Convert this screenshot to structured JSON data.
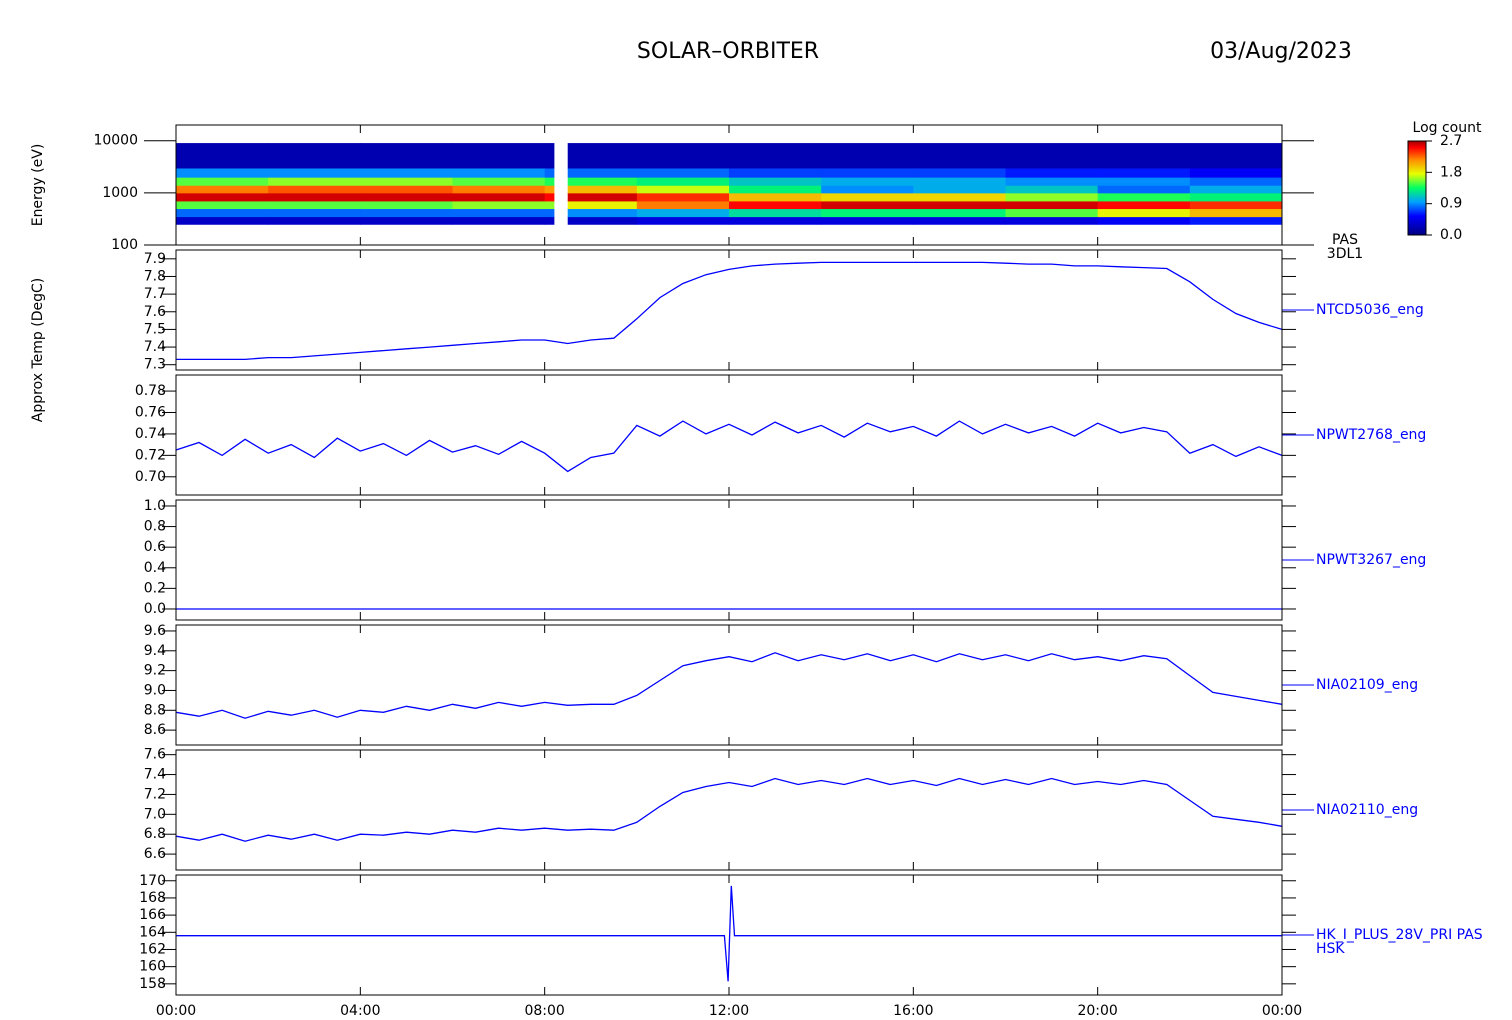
{
  "header": {
    "title": "SOLAR–ORBITER",
    "date": "03/Aug/2023"
  },
  "chart_data": [
    {
      "type": "heatmap",
      "ylabel": "Energy (eV)",
      "instrument": [
        "PAS",
        "3DL1"
      ],
      "log": true,
      "xlim": [
        0,
        24
      ],
      "ylim": [
        100,
        20000
      ],
      "yticks": [
        100,
        1000,
        10000
      ],
      "x_bins": [
        0,
        2,
        4,
        6,
        8,
        8.2,
        8.5,
        10,
        12,
        14,
        16,
        18,
        20,
        22,
        24
      ],
      "y_bins": [
        250,
        350,
        500,
        700,
        1000,
        1400,
        2000,
        3000,
        9000
      ],
      "z": [
        [
          0.3,
          0.8,
          1.5,
          2.6,
          2.2,
          1.5,
          0.9,
          0.2
        ],
        [
          0.3,
          0.8,
          1.5,
          2.6,
          2.3,
          1.6,
          0.9,
          0.2
        ],
        [
          0.3,
          0.8,
          1.5,
          2.6,
          2.3,
          1.6,
          0.9,
          0.2
        ],
        [
          0.3,
          0.8,
          1.6,
          2.6,
          2.2,
          1.5,
          0.9,
          0.2
        ],
        [
          0.3,
          0.8,
          1.6,
          2.5,
          2.1,
          1.4,
          0.8,
          0.2
        ],
        [
          null,
          null,
          null,
          null,
          null,
          null,
          null,
          null
        ],
        [
          0.3,
          0.9,
          1.8,
          2.6,
          2.0,
          1.4,
          0.8,
          0.2
        ],
        [
          0.4,
          1.0,
          2.2,
          2.4,
          1.7,
          1.3,
          0.8,
          0.2
        ],
        [
          0.4,
          1.2,
          2.5,
          2.0,
          1.3,
          1.1,
          0.7,
          0.2
        ],
        [
          0.4,
          1.3,
          2.6,
          1.9,
          0.9,
          1.0,
          0.7,
          0.2
        ],
        [
          0.4,
          1.3,
          2.6,
          1.9,
          1.0,
          1.0,
          0.7,
          0.2
        ],
        [
          0.4,
          1.5,
          2.6,
          1.6,
          1.1,
          0.9,
          0.6,
          0.2
        ],
        [
          0.5,
          1.8,
          2.5,
          1.4,
          0.8,
          0.9,
          0.6,
          0.2
        ],
        [
          0.6,
          2.0,
          2.4,
          1.3,
          1.0,
          0.8,
          0.5,
          0.2
        ]
      ],
      "colorbar_label": "Log count",
      "zlim": [
        0,
        2.7
      ],
      "zticks": [
        {
          "value": 0,
          "label": "0.0"
        },
        0.9,
        1.8,
        2.7
      ]
    },
    {
      "type": "line",
      "ylabel": "Approx Temp (DegC)",
      "xlim": [
        0,
        24
      ],
      "ylim": [
        7.27,
        7.95
      ],
      "yticks": [
        7.3,
        7.4,
        7.5,
        7.6,
        7.7,
        7.8,
        7.9
      ],
      "x": [
        0,
        0.5,
        1,
        1.5,
        2,
        2.5,
        3,
        3.5,
        4,
        4.5,
        5,
        5.5,
        6,
        6.5,
        7,
        7.5,
        8,
        8.5,
        9,
        9.5,
        10,
        10.5,
        11,
        11.5,
        12,
        12.5,
        13,
        13.5,
        14,
        14.5,
        15,
        15.5,
        16,
        16.5,
        17,
        17.5,
        18,
        18.5,
        19,
        19.5,
        20,
        20.5,
        21,
        21.5,
        22,
        22.5,
        23,
        23.5,
        24
      ],
      "series": [
        {
          "name": "NTCD5036_eng",
          "color": "#0000ff",
          "values": [
            7.33,
            7.33,
            7.33,
            7.33,
            7.34,
            7.34,
            7.35,
            7.36,
            7.37,
            7.38,
            7.39,
            7.4,
            7.41,
            7.42,
            7.43,
            7.44,
            7.44,
            7.42,
            7.44,
            7.45,
            7.56,
            7.68,
            7.76,
            7.81,
            7.84,
            7.86,
            7.87,
            7.875,
            7.88,
            7.88,
            7.88,
            7.88,
            7.88,
            7.88,
            7.88,
            7.88,
            7.875,
            7.87,
            7.87,
            7.86,
            7.86,
            7.855,
            7.85,
            7.845,
            7.77,
            7.67,
            7.59,
            7.54,
            7.5
          ]
        }
      ]
    },
    {
      "type": "line",
      "xlim": [
        0,
        24
      ],
      "ylim": [
        0.683,
        0.795
      ],
      "yticks": [
        {
          "value": 0.7,
          "label": "0.70"
        },
        0.72,
        0.74,
        0.76,
        0.78
      ],
      "x": [
        0,
        0.5,
        1,
        1.5,
        2,
        2.5,
        3,
        3.5,
        4,
        4.5,
        5,
        5.5,
        6,
        6.5,
        7,
        7.5,
        8,
        8.5,
        9,
        9.5,
        10,
        10.5,
        11,
        11.5,
        12,
        12.5,
        13,
        13.5,
        14,
        14.5,
        15,
        15.5,
        16,
        16.5,
        17,
        17.5,
        18,
        18.5,
        19,
        19.5,
        20,
        20.5,
        21,
        21.5,
        22,
        22.5,
        23,
        23.5,
        24
      ],
      "series": [
        {
          "name": "NPWT2768_eng",
          "color": "#0000ff",
          "values": [
            0.725,
            0.732,
            0.72,
            0.735,
            0.722,
            0.73,
            0.718,
            0.736,
            0.724,
            0.731,
            0.72,
            0.734,
            0.723,
            0.729,
            0.721,
            0.733,
            0.722,
            0.705,
            0.718,
            0.722,
            0.748,
            0.738,
            0.752,
            0.74,
            0.749,
            0.739,
            0.751,
            0.741,
            0.748,
            0.737,
            0.75,
            0.742,
            0.747,
            0.738,
            0.752,
            0.74,
            0.749,
            0.741,
            0.747,
            0.738,
            0.75,
            0.741,
            0.746,
            0.742,
            0.722,
            0.73,
            0.719,
            0.728,
            0.72
          ]
        }
      ]
    },
    {
      "type": "line",
      "xlim": [
        0,
        24
      ],
      "ylim": [
        -0.107,
        1.058
      ],
      "yticks": [
        {
          "value": 0,
          "label": "0.0"
        },
        0.2,
        0.4,
        0.6,
        0.8,
        {
          "value": 1,
          "label": "1.0"
        }
      ],
      "x": [
        0,
        24
      ],
      "series": [
        {
          "name": "NPWT3267_eng",
          "color": "#0000ff",
          "values": [
            0,
            0
          ]
        }
      ]
    },
    {
      "type": "line",
      "xlim": [
        0,
        24
      ],
      "ylim": [
        8.45,
        9.66
      ],
      "yticks": [
        8.6,
        8.8,
        {
          "value": 9,
          "label": "9.0"
        },
        9.2,
        9.4,
        9.6
      ],
      "x": [
        0,
        0.5,
        1,
        1.5,
        2,
        2.5,
        3,
        3.5,
        4,
        4.5,
        5,
        5.5,
        6,
        6.5,
        7,
        7.5,
        8,
        8.5,
        9,
        9.5,
        10,
        10.5,
        11,
        11.5,
        12,
        12.5,
        13,
        13.5,
        14,
        14.5,
        15,
        15.5,
        16,
        16.5,
        17,
        17.5,
        18,
        18.5,
        19,
        19.5,
        20,
        20.5,
        21,
        21.5,
        22,
        22.5,
        23,
        23.5,
        24
      ],
      "series": [
        {
          "name": "NIA02109_eng",
          "color": "#0000ff",
          "values": [
            8.78,
            8.74,
            8.8,
            8.72,
            8.79,
            8.75,
            8.8,
            8.73,
            8.8,
            8.78,
            8.84,
            8.8,
            8.86,
            8.82,
            8.88,
            8.84,
            8.88,
            8.85,
            8.86,
            8.86,
            8.95,
            9.1,
            9.25,
            9.3,
            9.34,
            9.29,
            9.38,
            9.3,
            9.36,
            9.31,
            9.37,
            9.3,
            9.36,
            9.29,
            9.37,
            9.31,
            9.36,
            9.3,
            9.37,
            9.31,
            9.34,
            9.3,
            9.35,
            9.32,
            9.15,
            8.98,
            8.94,
            8.9,
            8.86
          ]
        }
      ]
    },
    {
      "type": "line",
      "xlim": [
        0,
        24
      ],
      "ylim": [
        6.44,
        7.647
      ],
      "yticks": [
        6.6,
        6.8,
        {
          "value": 7,
          "label": "7.0"
        },
        7.2,
        7.4,
        7.6
      ],
      "x": [
        0,
        0.5,
        1,
        1.5,
        2,
        2.5,
        3,
        3.5,
        4,
        4.5,
        5,
        5.5,
        6,
        6.5,
        7,
        7.5,
        8,
        8.5,
        9,
        9.5,
        10,
        10.5,
        11,
        11.5,
        12,
        12.5,
        13,
        13.5,
        14,
        14.5,
        15,
        15.5,
        16,
        16.5,
        17,
        17.5,
        18,
        18.5,
        19,
        19.5,
        20,
        20.5,
        21,
        21.5,
        22,
        22.5,
        23,
        23.5,
        24
      ],
      "series": [
        {
          "name": "NIA02110_eng",
          "color": "#0000ff",
          "values": [
            6.78,
            6.74,
            6.8,
            6.73,
            6.79,
            6.75,
            6.8,
            6.74,
            6.8,
            6.79,
            6.82,
            6.8,
            6.84,
            6.82,
            6.86,
            6.84,
            6.86,
            6.84,
            6.85,
            6.84,
            6.92,
            7.08,
            7.22,
            7.28,
            7.32,
            7.28,
            7.36,
            7.3,
            7.34,
            7.3,
            7.36,
            7.3,
            7.34,
            7.29,
            7.36,
            7.3,
            7.35,
            7.3,
            7.36,
            7.3,
            7.33,
            7.3,
            7.34,
            7.3,
            7.14,
            6.98,
            6.95,
            6.92,
            6.88
          ]
        }
      ]
    },
    {
      "type": "line",
      "xlim": [
        0,
        24
      ],
      "ylim": [
        156.7,
        170.67
      ],
      "yticks": [
        158,
        160,
        162,
        164,
        166,
        168,
        170
      ],
      "xticks": [
        {
          "value": 0,
          "label": "00:00"
        },
        {
          "value": 4,
          "label": "04:00"
        },
        {
          "value": 8,
          "label": "08:00"
        },
        {
          "value": 12,
          "label": "12:00"
        },
        {
          "value": 16,
          "label": "16:00"
        },
        {
          "value": 20,
          "label": "20:00"
        },
        {
          "value": 24,
          "label": "00:00"
        }
      ],
      "x": [
        0,
        2,
        4,
        6,
        8,
        10,
        11.9,
        11.98,
        12.05,
        12.12,
        14,
        16,
        18,
        20,
        22,
        24
      ],
      "series": [
        {
          "name": [
            "HK_I_PLUS_28V_PRI PAS",
            "HSK"
          ],
          "color": "#0000ff",
          "values": [
            163.6,
            163.6,
            163.6,
            163.6,
            163.6,
            163.6,
            163.6,
            158.3,
            169.4,
            163.6,
            163.6,
            163.6,
            163.6,
            163.6,
            163.6,
            163.6
          ]
        }
      ]
    }
  ]
}
